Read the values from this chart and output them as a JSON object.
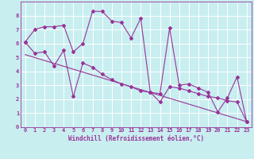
{
  "xlabel": "Windchill (Refroidissement éolien,°C)",
  "ylabel": "",
  "bg_color": "#c8eef0",
  "grid_color": "#ffffff",
  "line_color": "#993399",
  "xlim": [
    -0.5,
    23.5
  ],
  "ylim": [
    0,
    9
  ],
  "xticks": [
    0,
    1,
    2,
    3,
    4,
    5,
    6,
    7,
    8,
    9,
    10,
    11,
    12,
    13,
    14,
    15,
    16,
    17,
    18,
    19,
    20,
    21,
    22,
    23
  ],
  "yticks": [
    0,
    1,
    2,
    3,
    4,
    5,
    6,
    7,
    8
  ],
  "series1_x": [
    0,
    1,
    2,
    3,
    4,
    5,
    6,
    7,
    8,
    9,
    10,
    11,
    12,
    13,
    14,
    15,
    16,
    17,
    18,
    19,
    20,
    21,
    22,
    23
  ],
  "series1_y": [
    6.1,
    7.0,
    7.2,
    7.2,
    7.3,
    5.4,
    6.0,
    8.3,
    8.3,
    7.6,
    7.5,
    6.4,
    7.8,
    2.5,
    2.4,
    7.1,
    3.0,
    3.1,
    2.8,
    2.5,
    1.1,
    2.1,
    3.6,
    0.4
  ],
  "series2_x": [
    0,
    1,
    2,
    3,
    4,
    5,
    6,
    7,
    8,
    9,
    10,
    11,
    12,
    13,
    14,
    15,
    16,
    17,
    18,
    19,
    20,
    21,
    22,
    23
  ],
  "series2_y": [
    6.1,
    5.3,
    5.4,
    4.4,
    5.5,
    2.2,
    4.6,
    4.3,
    3.8,
    3.4,
    3.1,
    2.9,
    2.6,
    2.5,
    1.8,
    2.9,
    2.8,
    2.6,
    2.4,
    2.2,
    2.1,
    1.9,
    1.8,
    0.4
  ],
  "series3_x": [
    0,
    23
  ],
  "series3_y": [
    5.2,
    0.4
  ],
  "marker": "D",
  "markersize": 2.0,
  "linewidth": 0.8,
  "tick_fontsize": 5.0,
  "xlabel_fontsize": 5.5
}
